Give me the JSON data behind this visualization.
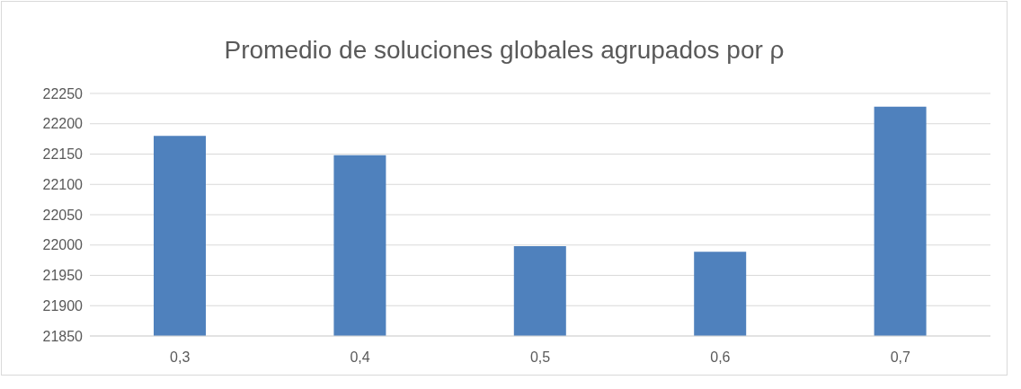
{
  "chart_data": {
    "type": "bar",
    "title": "Promedio de soluciones globales agrupados por ρ",
    "categories": [
      "0,3",
      "0,4",
      "0,5",
      "0,6",
      "0,7"
    ],
    "values": [
      22180,
      22148,
      21998,
      21989,
      22228
    ],
    "color": "#4f81bd",
    "ylim": [
      21850,
      22250
    ],
    "yticks": [
      21850,
      21900,
      21950,
      22000,
      22050,
      22100,
      22150,
      22200,
      22250
    ],
    "grid": "y"
  }
}
